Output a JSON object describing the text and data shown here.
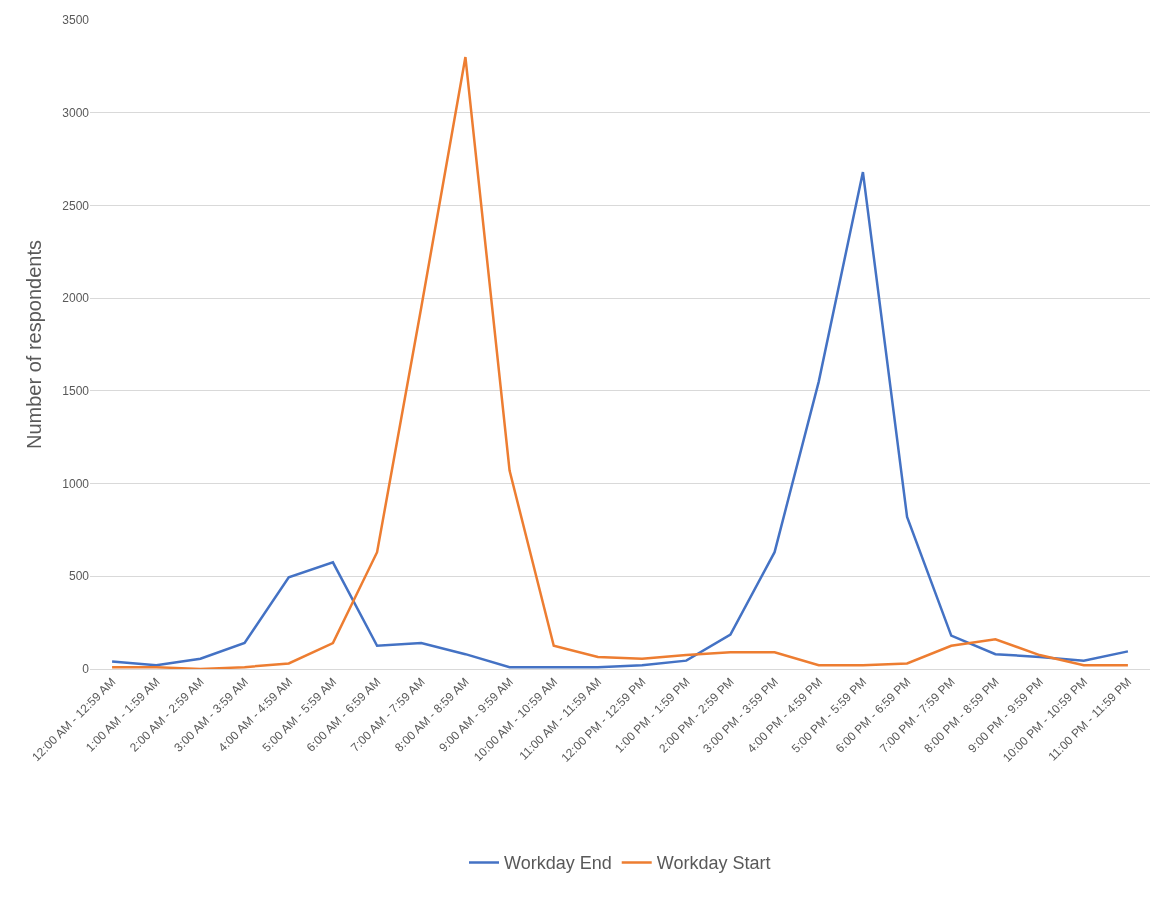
{
  "chart_data": {
    "type": "line",
    "ylabel": "Number of respondents",
    "categories": [
      "12:00 AM - 12:59 AM",
      "1:00 AM - 1:59 AM",
      "2:00 AM - 2:59 AM",
      "3:00 AM - 3:59 AM",
      "4:00 AM - 4:59 AM",
      "5:00 AM - 5:59 AM",
      "6:00 AM - 6:59 AM",
      "7:00 AM - 7:59 AM",
      "8:00 AM - 8:59 AM",
      "9:00 AM - 9:59 AM",
      "10:00 AM - 10:59 AM",
      "11:00 AM - 11:59 AM",
      "12:00 PM - 12:59 PM",
      "1:00 PM - 1:59 PM",
      "2:00 PM - 2:59 PM",
      "3:00 PM - 3:59 PM",
      "4:00 PM - 4:59 PM",
      "5:00 PM - 5:59 PM",
      "6:00 PM - 6:59 PM",
      "7:00 PM - 7:59 PM",
      "8:00 PM - 8:59 PM",
      "9:00 PM - 9:59 PM",
      "10:00 PM - 10:59 PM",
      "11:00 PM - 11:59 PM"
    ],
    "series": [
      {
        "name": "Workday End",
        "color": "#4472c4",
        "values": [
          40,
          20,
          55,
          140,
          495,
          575,
          125,
          140,
          80,
          10,
          10,
          10,
          20,
          45,
          185,
          630,
          1550,
          2680,
          820,
          180,
          80,
          65,
          45,
          95
        ]
      },
      {
        "name": "Workday Start",
        "color": "#ed7d31",
        "values": [
          10,
          10,
          0,
          10,
          30,
          140,
          630,
          1950,
          3300,
          1070,
          125,
          65,
          55,
          75,
          90,
          90,
          20,
          20,
          30,
          125,
          160,
          75,
          20,
          20
        ]
      }
    ],
    "ylim": [
      0,
      3500
    ],
    "yticks": [
      0,
      500,
      1000,
      1500,
      2000,
      2500,
      3000,
      3500
    ],
    "grid": "y",
    "legend": "bottom",
    "marker": "none",
    "line_style": "solid"
  }
}
